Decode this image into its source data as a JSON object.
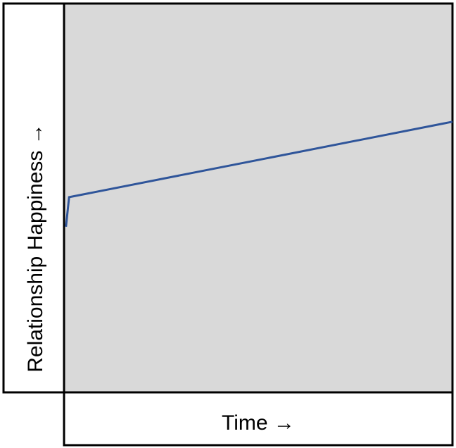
{
  "chart_data": {
    "type": "line",
    "x_label": "Time →",
    "y_label": "Relationship Happiness →",
    "xlim": [
      0,
      100
    ],
    "ylim": [
      0,
      100
    ],
    "series": [
      {
        "color": "#2f559a",
        "x": [
          0.5,
          1.3,
          100
        ],
        "values": [
          42.6,
          50.2,
          69.6
        ]
      }
    ],
    "background": "#d9d9d9"
  }
}
